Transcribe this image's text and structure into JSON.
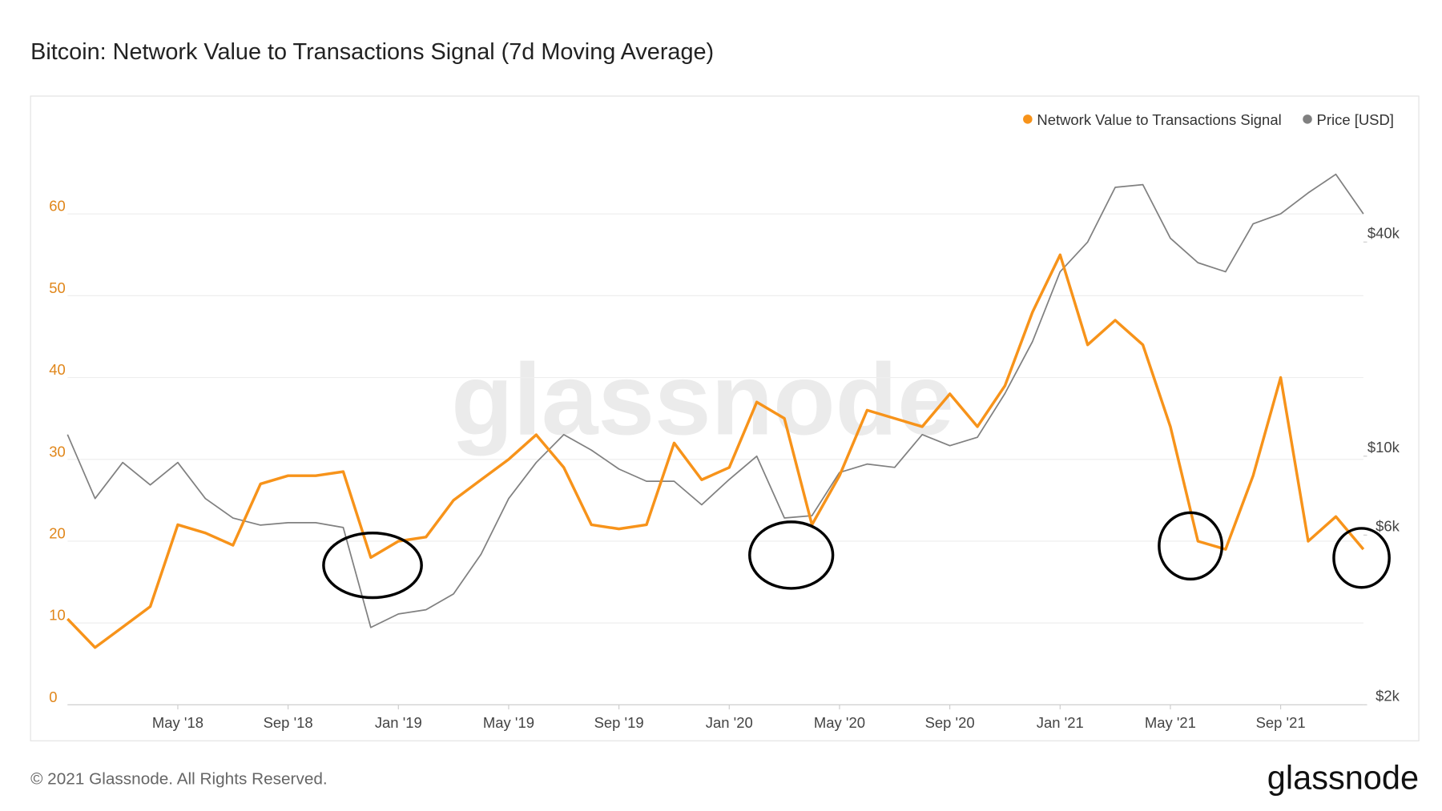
{
  "chart_data": {
    "type": "line",
    "title": "Bitcoin: Network Value to Transactions Signal (7d Moving Average)",
    "watermark": "glassnode",
    "footer": "© 2021 Glassnode. All Rights Reserved.",
    "brand": "glassnode",
    "legend": "top-right",
    "x": [
      "2018-01",
      "2018-02",
      "2018-03",
      "2018-04",
      "2018-05",
      "2018-06",
      "2018-07",
      "2018-08",
      "2018-09",
      "2018-10",
      "2018-11",
      "2018-12",
      "2019-01",
      "2019-02",
      "2019-03",
      "2019-04",
      "2019-05",
      "2019-06",
      "2019-07",
      "2019-08",
      "2019-09",
      "2019-10",
      "2019-11",
      "2019-12",
      "2020-01",
      "2020-02",
      "2020-03",
      "2020-04",
      "2020-05",
      "2020-06",
      "2020-07",
      "2020-08",
      "2020-09",
      "2020-10",
      "2020-11",
      "2020-12",
      "2021-01",
      "2021-02",
      "2021-03",
      "2021-04",
      "2021-05",
      "2021-06",
      "2021-07",
      "2021-08",
      "2021-09",
      "2021-10",
      "2021-11",
      "2021-12"
    ],
    "xlim": [
      "2018-01",
      "2021-12"
    ],
    "xticks": [
      {
        "value": "2018-05",
        "label": "May '18"
      },
      {
        "value": "2018-09",
        "label": "Sep '18"
      },
      {
        "value": "2019-01",
        "label": "Jan '19"
      },
      {
        "value": "2019-05",
        "label": "May '19"
      },
      {
        "value": "2019-09",
        "label": "Sep '19"
      },
      {
        "value": "2020-01",
        "label": "Jan '20"
      },
      {
        "value": "2020-05",
        "label": "May '20"
      },
      {
        "value": "2020-09",
        "label": "Sep '20"
      },
      {
        "value": "2021-01",
        "label": "Jan '21"
      },
      {
        "value": "2021-05",
        "label": "May '21"
      },
      {
        "value": "2021-09",
        "label": "Sep '21"
      }
    ],
    "ylim": [
      0,
      70
    ],
    "yticks": [
      0,
      10,
      20,
      30,
      40,
      50,
      60
    ],
    "y2lim": [
      2000,
      81500
    ],
    "y2scale": "log",
    "y2ticks": [
      {
        "value": 2000,
        "label": "$2k"
      },
      {
        "value": 6000,
        "label": "$6k"
      },
      {
        "value": 10000,
        "label": "$10k"
      },
      {
        "value": 40000,
        "label": "$40k"
      }
    ],
    "grid": true,
    "series": [
      {
        "name": "Network Value to Transactions Signal",
        "color": "#f7931a",
        "values": [
          10.5,
          7,
          9.5,
          12,
          22,
          21,
          19.5,
          27,
          28,
          28,
          28.5,
          18,
          20,
          20.5,
          25,
          27.5,
          30,
          33,
          29,
          22,
          21.5,
          22,
          32,
          27.5,
          29,
          37,
          35,
          22,
          28,
          36,
          35,
          34,
          38,
          34,
          39,
          48,
          55,
          44,
          47,
          44,
          34,
          20,
          19,
          28,
          40,
          20,
          23,
          19
        ]
      },
      {
        "name": "Price [USD]",
        "color": "#808080",
        "axis": "y2",
        "values": [
          11500,
          7600,
          9600,
          8300,
          9600,
          7600,
          6700,
          6400,
          6500,
          6500,
          6300,
          3300,
          3600,
          3700,
          4100,
          5300,
          7600,
          9600,
          11500,
          10400,
          9200,
          8500,
          8500,
          7300,
          8600,
          10000,
          6700,
          6800,
          9000,
          9500,
          9300,
          11500,
          10700,
          11300,
          15000,
          21000,
          33000,
          40000,
          57000,
          58000,
          41000,
          35000,
          33000,
          45000,
          48000,
          55000,
          62000,
          48000
        ]
      }
    ]
  }
}
